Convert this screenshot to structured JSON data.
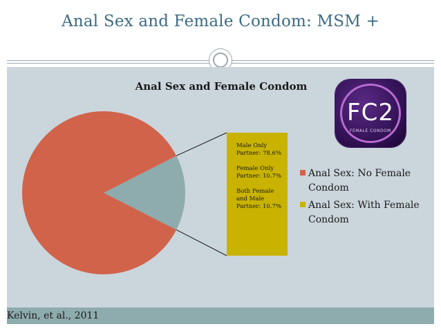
{
  "slide": {
    "title": "Anal Sex and Female Condom: MSM +",
    "citation": "Kelvin, et al., 2011"
  },
  "logo": {
    "mark": "FC2",
    "subtext": "FEMALE CONDOM"
  },
  "callout": {
    "lines": [
      "Male Only Partner: 78.6%",
      "Female Only Partner: 10.7%",
      "Both Female and Male Partner: 10.7%"
    ]
  },
  "colors": {
    "no_female_condom": "#d0634a",
    "with_female_condom": "#8eabad",
    "callout_bg": "#c9b300",
    "panel_bg": "#cbd5dc",
    "title": "#3c6b84"
  },
  "chart_data": {
    "type": "pie",
    "title": "Anal Sex and Female Condom",
    "categories": [
      "Anal Sex: No Female Condom",
      "Anal Sex: With Female Condom"
    ],
    "values": [
      85,
      15
    ],
    "legend_entries": [
      {
        "label": "Anal Sex: No Female Condom",
        "color": "#d0634a"
      },
      {
        "label": "Anal Sex: With Female Condom",
        "color": "#c9b300"
      }
    ],
    "legend_position": "right"
  }
}
